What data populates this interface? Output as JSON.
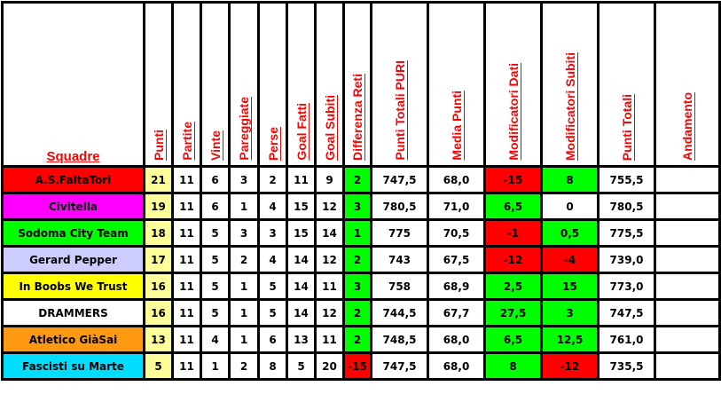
{
  "colors": {
    "green": "#00ff00",
    "red": "#ff0000",
    "white": "#ffffff",
    "punti_bg": "#ffff99",
    "header_text": "#ff0000"
  },
  "headers": [
    "Squadre",
    "Punti",
    "Partite",
    "Vinte",
    "Pareggiate",
    "Perse",
    "Goal Fatti",
    "Goal Subiti",
    "Differenza Reti",
    "Punti Totali PURI",
    "Media Punti",
    "Modificatori Dati",
    "Modificatori Subiti",
    "Punti Totali",
    "Andamento"
  ],
  "rows": [
    {
      "team": "A.S.FaltaTori",
      "team_color": "#ff0000",
      "punti": "21",
      "partite": "11",
      "vinte": "6",
      "pareggiate": "3",
      "perse": "2",
      "goal_fatti": "11",
      "goal_subiti": "9",
      "diff": "2",
      "diff_color": "#00ff00",
      "puri": "747,5",
      "media": "68,0",
      "mod_dati": "-15",
      "mod_dati_color": "#ff0000",
      "mod_subiti": "8",
      "mod_subiti_color": "#00ff00",
      "totali": "755,5",
      "andamento": ""
    },
    {
      "team": "Civitella",
      "team_color": "#ff00ff",
      "punti": "19",
      "partite": "11",
      "vinte": "6",
      "pareggiate": "1",
      "perse": "4",
      "goal_fatti": "15",
      "goal_subiti": "12",
      "diff": "3",
      "diff_color": "#00ff00",
      "puri": "780,5",
      "media": "71,0",
      "mod_dati": "6,5",
      "mod_dati_color": "#00ff00",
      "mod_subiti": "0",
      "mod_subiti_color": "#ffffff",
      "totali": "780,5",
      "andamento": ""
    },
    {
      "team": "Sodoma City Team",
      "team_color": "#00ff00",
      "punti": "18",
      "partite": "11",
      "vinte": "5",
      "pareggiate": "3",
      "perse": "3",
      "goal_fatti": "15",
      "goal_subiti": "14",
      "diff": "1",
      "diff_color": "#00ff00",
      "puri": "775",
      "media": "70,5",
      "mod_dati": "-1",
      "mod_dati_color": "#ff0000",
      "mod_subiti": "0,5",
      "mod_subiti_color": "#00ff00",
      "totali": "775,5",
      "andamento": ""
    },
    {
      "team": "Gerard Pepper",
      "team_color": "#ccccff",
      "punti": "17",
      "partite": "11",
      "vinte": "5",
      "pareggiate": "2",
      "perse": "4",
      "goal_fatti": "14",
      "goal_subiti": "12",
      "diff": "2",
      "diff_color": "#00ff00",
      "puri": "743",
      "media": "67,5",
      "mod_dati": "-12",
      "mod_dati_color": "#ff0000",
      "mod_subiti": "-4",
      "mod_subiti_color": "#ff0000",
      "totali": "739,0",
      "andamento": ""
    },
    {
      "team": "In Boobs We Trust",
      "team_color": "#ffff00",
      "punti": "16",
      "partite": "11",
      "vinte": "5",
      "pareggiate": "1",
      "perse": "5",
      "goal_fatti": "14",
      "goal_subiti": "11",
      "diff": "3",
      "diff_color": "#00ff00",
      "puri": "758",
      "media": "68,9",
      "mod_dati": "2,5",
      "mod_dati_color": "#00ff00",
      "mod_subiti": "15",
      "mod_subiti_color": "#00ff00",
      "totali": "773,0",
      "andamento": ""
    },
    {
      "team": "DRAMMERS",
      "team_color": "#ffffff",
      "punti": "16",
      "partite": "11",
      "vinte": "5",
      "pareggiate": "1",
      "perse": "5",
      "goal_fatti": "14",
      "goal_subiti": "12",
      "diff": "2",
      "diff_color": "#00ff00",
      "puri": "744,5",
      "media": "67,7",
      "mod_dati": "27,5",
      "mod_dati_color": "#00ff00",
      "mod_subiti": "3",
      "mod_subiti_color": "#00ff00",
      "totali": "747,5",
      "andamento": ""
    },
    {
      "team": "Atletico GiàSai",
      "team_color": "#ff9911",
      "punti": "13",
      "partite": "11",
      "vinte": "4",
      "pareggiate": "1",
      "perse": "6",
      "goal_fatti": "13",
      "goal_subiti": "11",
      "diff": "2",
      "diff_color": "#00ff00",
      "puri": "748,5",
      "media": "68,0",
      "mod_dati": "6,5",
      "mod_dati_color": "#00ff00",
      "mod_subiti": "12,5",
      "mod_subiti_color": "#00ff00",
      "totali": "761,0",
      "andamento": ""
    },
    {
      "team": "Fascisti su Marte",
      "team_color": "#00ddff",
      "punti": "5",
      "partite": "11",
      "vinte": "1",
      "pareggiate": "2",
      "perse": "8",
      "goal_fatti": "5",
      "goal_subiti": "20",
      "diff": "-15",
      "diff_color": "#ff0000",
      "puri": "747,5",
      "media": "68,0",
      "mod_dati": "8",
      "mod_dati_color": "#00ff00",
      "mod_subiti": "-12",
      "mod_subiti_color": "#ff0000",
      "totali": "735,5",
      "andamento": ""
    }
  ]
}
